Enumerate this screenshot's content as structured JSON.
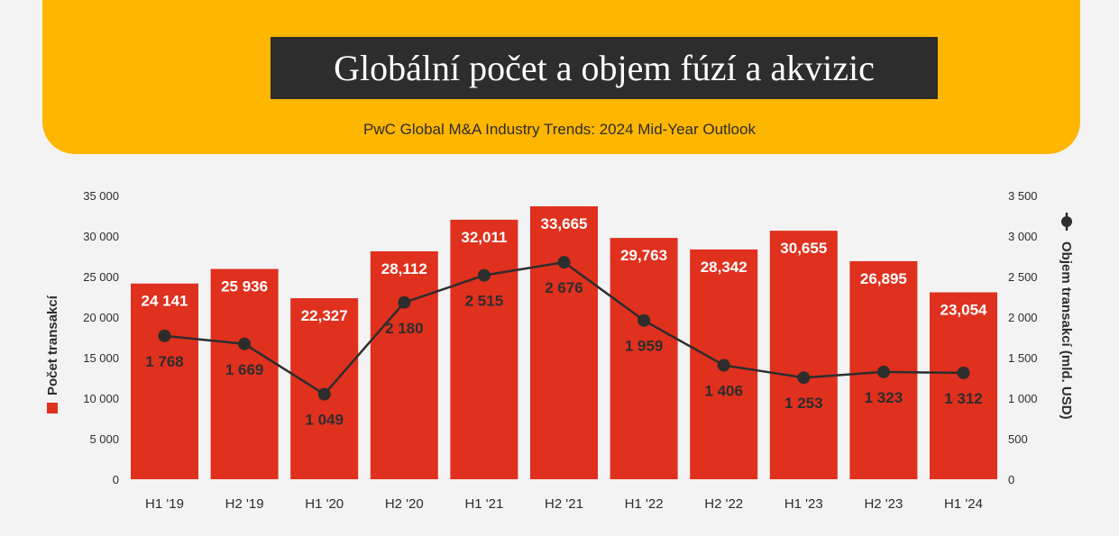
{
  "header": {
    "title": "Globální počet a objem fúzí a akvizic",
    "subtitle": "PwC Global M&A Industry Trends: 2024 Mid-Year Outlook"
  },
  "colors": {
    "banner": "#ffb600",
    "title_box": "#2d2d2d",
    "bar": "#e0301e",
    "line": "#2d2d2d",
    "background": "#f3f3f3"
  },
  "chart_data": {
    "type": "bar",
    "categories": [
      "H1 '19",
      "H2 '19",
      "H1 '20",
      "H2 '20",
      "H1 '21",
      "H2 '21",
      "H1 '22",
      "H2 '22",
      "H1 '23",
      "H2 '23",
      "H1 '24"
    ],
    "series": [
      {
        "name": "Počet transakcí",
        "type": "bar",
        "axis": "left",
        "values": [
          24141,
          25936,
          22327,
          28112,
          32011,
          33665,
          29763,
          28342,
          30655,
          26895,
          23054
        ],
        "labels": [
          "24 141",
          "25 936",
          "22,327",
          "28,112",
          "32,011",
          "33,665",
          "29,763",
          "28,342",
          "30,655",
          "26,895",
          "23,054"
        ]
      },
      {
        "name": "Objem transakcí (mld. USD)",
        "type": "line",
        "axis": "right",
        "values": [
          1768,
          1669,
          1049,
          2180,
          2515,
          2676,
          1959,
          1406,
          1253,
          1323,
          1312
        ],
        "labels": [
          "1 768",
          "1 669",
          "1 049",
          "2 180",
          "2 515",
          "2 676",
          "1 959",
          "1 406",
          "1 253",
          "1 323",
          "1 312"
        ]
      }
    ],
    "ylabel": "Počet transakcí",
    "y2label": "Objem transakcí (mld. USD)",
    "ylim": [
      0,
      35000
    ],
    "y2lim": [
      0,
      3500
    ],
    "yticks": [
      "0",
      "5 000",
      "10 000",
      "15 000",
      "20 000",
      "25 000",
      "30 000",
      "35 000"
    ],
    "y2ticks": [
      "0",
      "500",
      "1 000",
      "1 500",
      "2 000",
      "2 500",
      "3 000",
      "3 500"
    ],
    "grid": false,
    "legend": "axis titles with markers"
  }
}
